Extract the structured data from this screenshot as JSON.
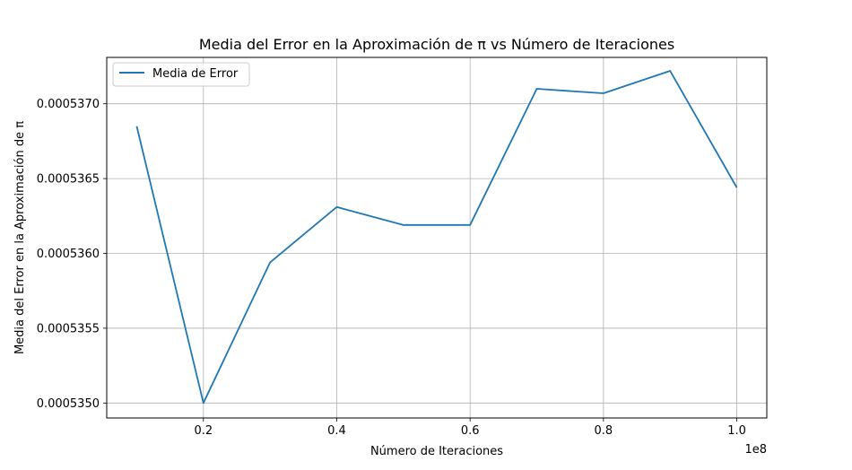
{
  "chart_data": {
    "type": "line",
    "title": "Media del Error en la Aproximación de π vs Número de Iteraciones",
    "xlabel": "Número de Iteraciones",
    "ylabel": "Media del Error en la Aproximación de π",
    "x_offset_label": "1e8",
    "xlim": [
      0.055,
      1.045
    ],
    "ylim": [
      0.0005349,
      0.00053731
    ],
    "x_ticks": [
      0.2,
      0.4,
      0.6,
      0.8,
      1.0
    ],
    "x_tick_labels": [
      "0.2",
      "0.4",
      "0.6",
      "0.8",
      "1.0"
    ],
    "y_ticks": [
      0.000535,
      0.0005355,
      0.000536,
      0.0005365,
      0.000537
    ],
    "y_tick_labels": [
      "0.0005350",
      "0.0005355",
      "0.0005360",
      "0.0005365",
      "0.0005370"
    ],
    "grid": true,
    "legend_position": "upper-left",
    "series": [
      {
        "name": "Media de Error",
        "color": "#1f77b4",
        "x": [
          0.1,
          0.2,
          0.3,
          0.4,
          0.5,
          0.6,
          0.7,
          0.8,
          0.9,
          1.0
        ],
        "y": [
          0.00053685,
          0.000535,
          0.00053594,
          0.00053631,
          0.00053619,
          0.00053619,
          0.0005371,
          0.00053707,
          0.00053722,
          0.00053644
        ]
      }
    ]
  }
}
